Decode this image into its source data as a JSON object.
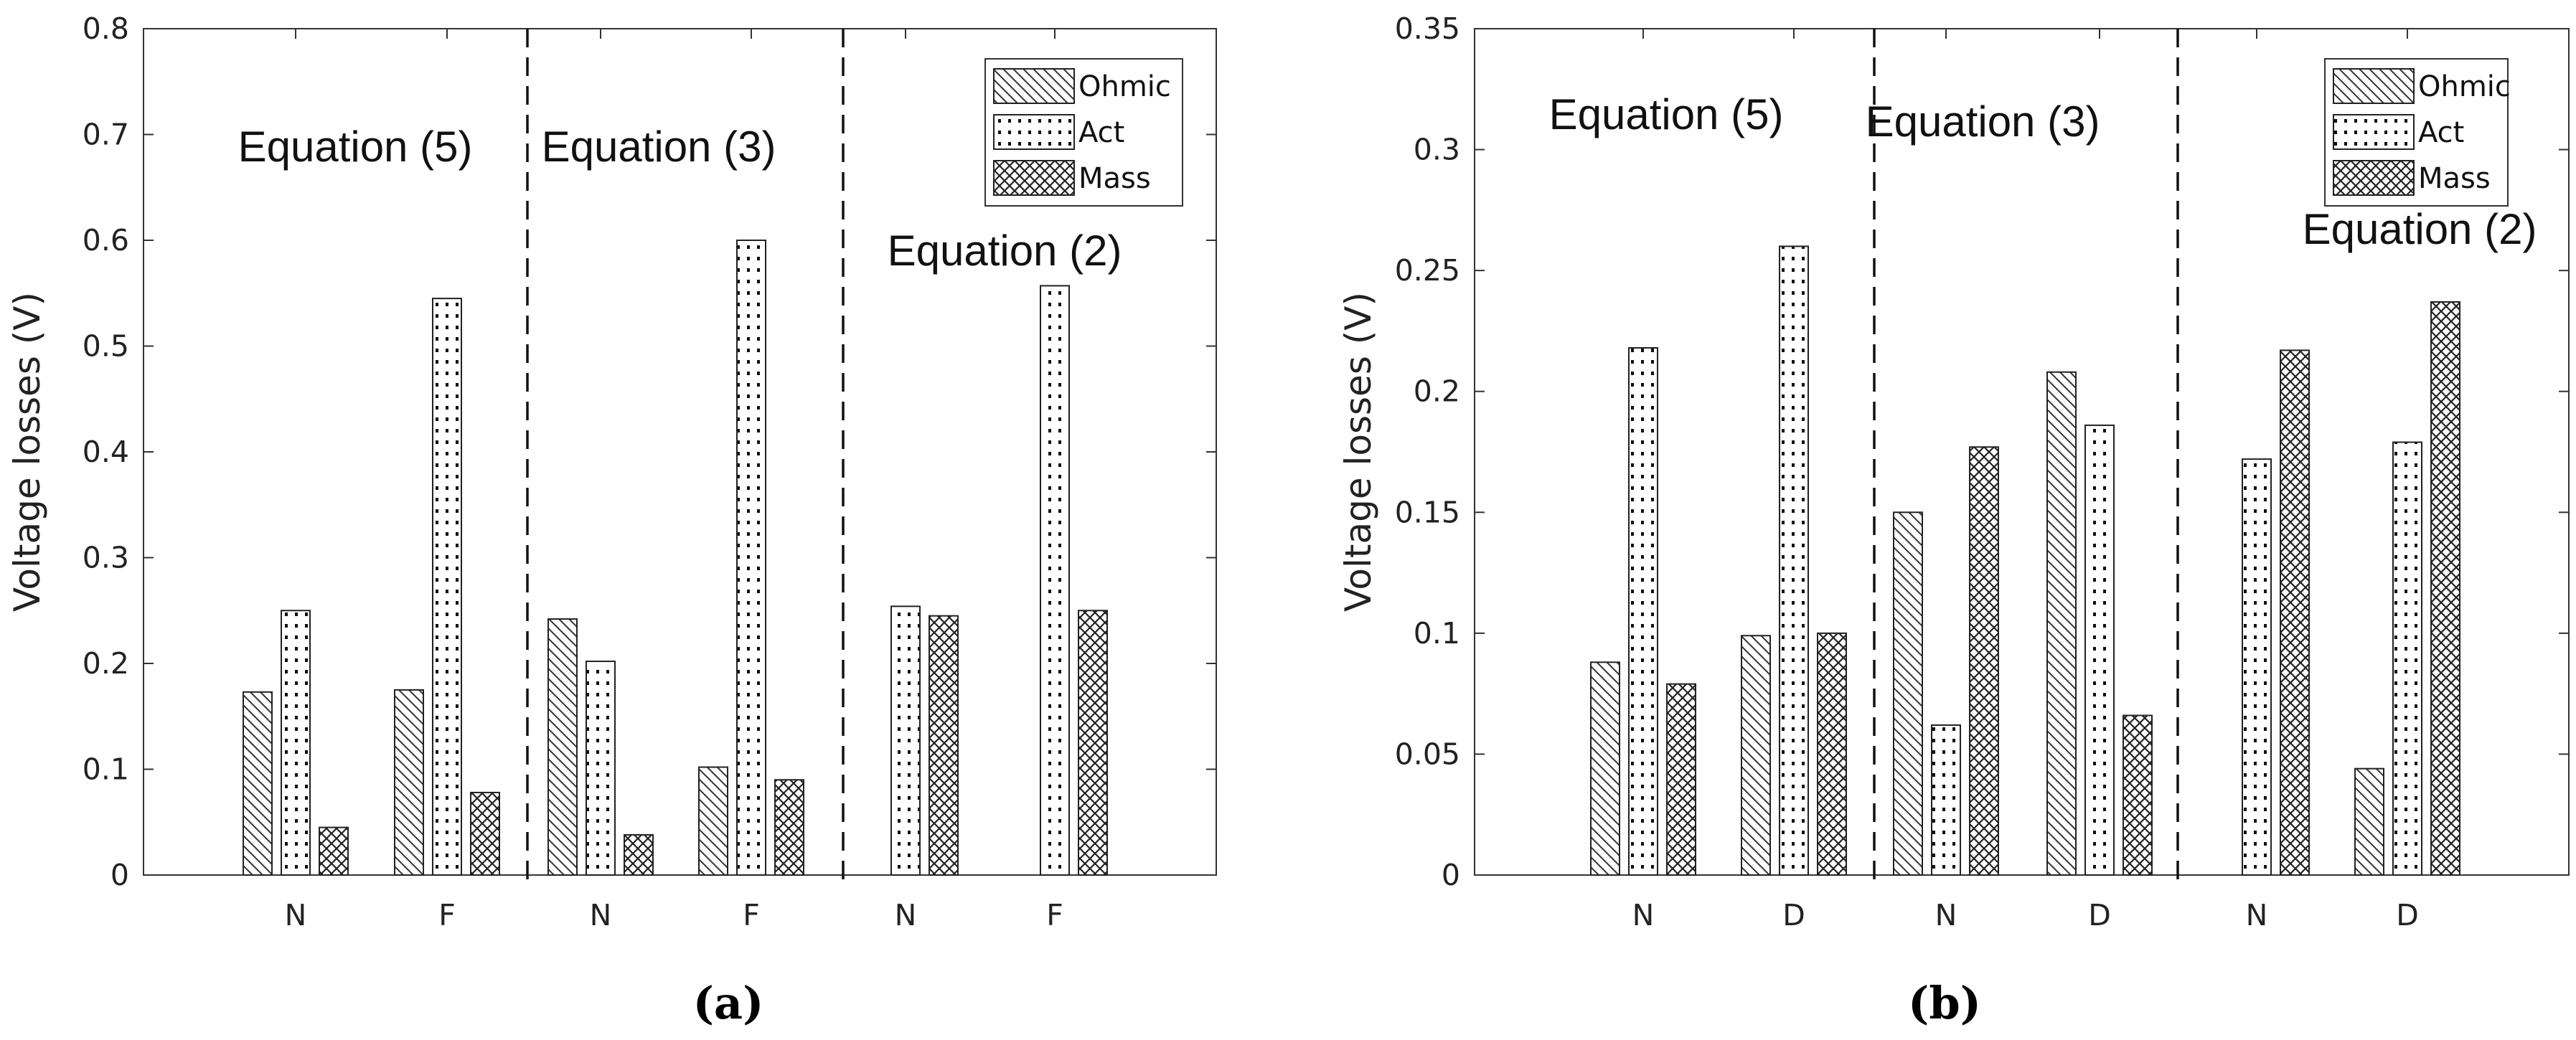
{
  "chart_data": [
    {
      "type": "bar",
      "caption": "(a)",
      "ylabel": "Voltage losses (V)",
      "ylim": [
        0,
        0.8
      ],
      "yticks": [
        "0",
        "0.1",
        "0.2",
        "0.3",
        "0.4",
        "0.5",
        "0.6",
        "0.7",
        "0.8"
      ],
      "categories": [
        "N",
        "F",
        "N",
        "F",
        "N",
        "F"
      ],
      "series": [
        {
          "name": "Ohmic",
          "values": [
            0.173,
            0.175,
            0.242,
            0.102,
            null,
            null
          ]
        },
        {
          "name": "Act",
          "values": [
            0.25,
            0.545,
            0.202,
            0.6,
            0.254,
            0.557
          ]
        },
        {
          "name": "Mass",
          "values": [
            0.045,
            0.078,
            0.038,
            0.09,
            0.245,
            0.25
          ]
        }
      ],
      "equation_labels": [
        "Equation (5)",
        "Equation (3)",
        "Equation (2)"
      ],
      "legend_position": "top-right"
    },
    {
      "type": "bar",
      "caption": "(b)",
      "ylabel": "Voltage losses (V)",
      "ylim": [
        0,
        0.35
      ],
      "yticks": [
        "0",
        "0.05",
        "0.1",
        "0.15",
        "0.2",
        "0.25",
        "0.3",
        "0.35"
      ],
      "categories": [
        "N",
        "D",
        "N",
        "D",
        "N",
        "D"
      ],
      "series": [
        {
          "name": "Ohmic",
          "values": [
            0.088,
            0.099,
            0.15,
            0.208,
            null,
            0.044
          ]
        },
        {
          "name": "Act",
          "values": [
            0.218,
            0.26,
            0.062,
            0.186,
            0.172,
            0.179
          ]
        },
        {
          "name": "Mass",
          "values": [
            0.079,
            0.1,
            0.177,
            0.066,
            0.217,
            0.237
          ]
        }
      ],
      "equation_labels": [
        "Equation (5)",
        "Equation (3)",
        "Equation (2)"
      ],
      "legend_position": "top-right"
    }
  ]
}
